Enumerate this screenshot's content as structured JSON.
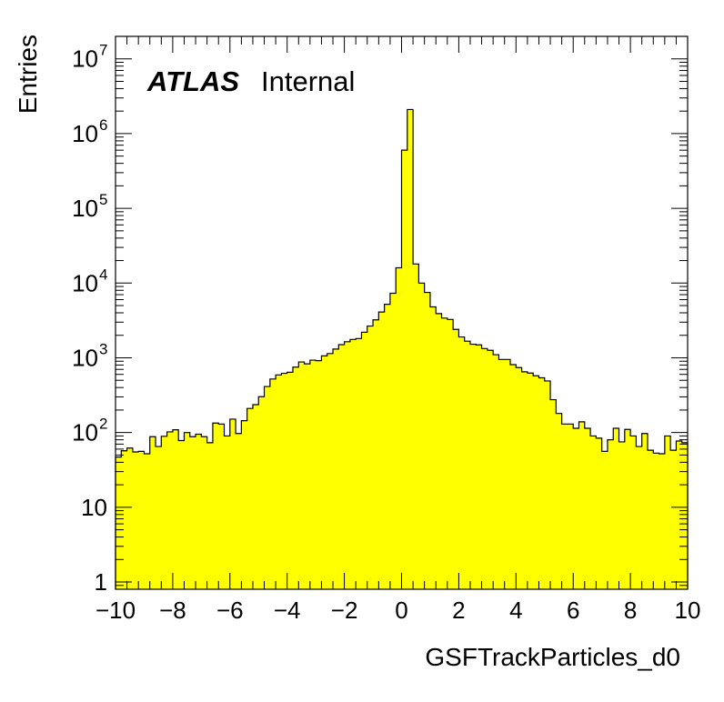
{
  "chart_data": {
    "type": "histogram",
    "xlabel": "GSFTrackParticles_d0",
    "ylabel": "Entries",
    "xlim": [
      -10,
      10
    ],
    "ylim": [
      0.8,
      20000000
    ],
    "y_scale": "log",
    "grid": false,
    "fill_color": "#ffff00",
    "line_color": "#000000",
    "annotation": {
      "experiment": "ATLAS",
      "status": "Internal"
    },
    "x_ticks": [
      {
        "value": -10,
        "label": "−10"
      },
      {
        "value": -8,
        "label": "−8"
      },
      {
        "value": -6,
        "label": "−6"
      },
      {
        "value": -4,
        "label": "−4"
      },
      {
        "value": -2,
        "label": "−2"
      },
      {
        "value": 0,
        "label": "0"
      },
      {
        "value": 2,
        "label": "2"
      },
      {
        "value": 4,
        "label": "4"
      },
      {
        "value": 6,
        "label": "6"
      },
      {
        "value": 8,
        "label": "8"
      },
      {
        "value": 10,
        "label": "10"
      }
    ],
    "y_ticks": [
      {
        "value": 1,
        "base": "1",
        "exp": ""
      },
      {
        "value": 10,
        "base": "10",
        "exp": ""
      },
      {
        "value": 100,
        "base": "10",
        "exp": "2"
      },
      {
        "value": 1000,
        "base": "10",
        "exp": "3"
      },
      {
        "value": 10000,
        "base": "10",
        "exp": "4"
      },
      {
        "value": 100000,
        "base": "10",
        "exp": "5"
      },
      {
        "value": 1000000,
        "base": "10",
        "exp": "6"
      },
      {
        "value": 10000000,
        "base": "10",
        "exp": "7"
      }
    ],
    "bins": {
      "x_min": -10,
      "x_max": 10,
      "counts": [
        47,
        57,
        62,
        55,
        56,
        52,
        88,
        65,
        89,
        102,
        109,
        78,
        100,
        88,
        95,
        88,
        73,
        134,
        130,
        90,
        151,
        97,
        144,
        210,
        236,
        302,
        413,
        520,
        590,
        620,
        640,
        750,
        880,
        830,
        930,
        915,
        1060,
        1140,
        1310,
        1500,
        1640,
        1760,
        1810,
        2200,
        2660,
        3220,
        4100,
        5200,
        7300,
        16000,
        600000,
        2100000,
        18000,
        10000,
        7500,
        4800,
        3900,
        3400,
        3260,
        2400,
        1900,
        1670,
        1520,
        1490,
        1330,
        1260,
        1100,
        950,
        950,
        810,
        740,
        650,
        625,
        575,
        540,
        490,
        275,
        180,
        130,
        130,
        114,
        139,
        114,
        90,
        84,
        56,
        80,
        114,
        75,
        110,
        90,
        65,
        97,
        58,
        53,
        52,
        90,
        58,
        77,
        73
      ]
    }
  }
}
